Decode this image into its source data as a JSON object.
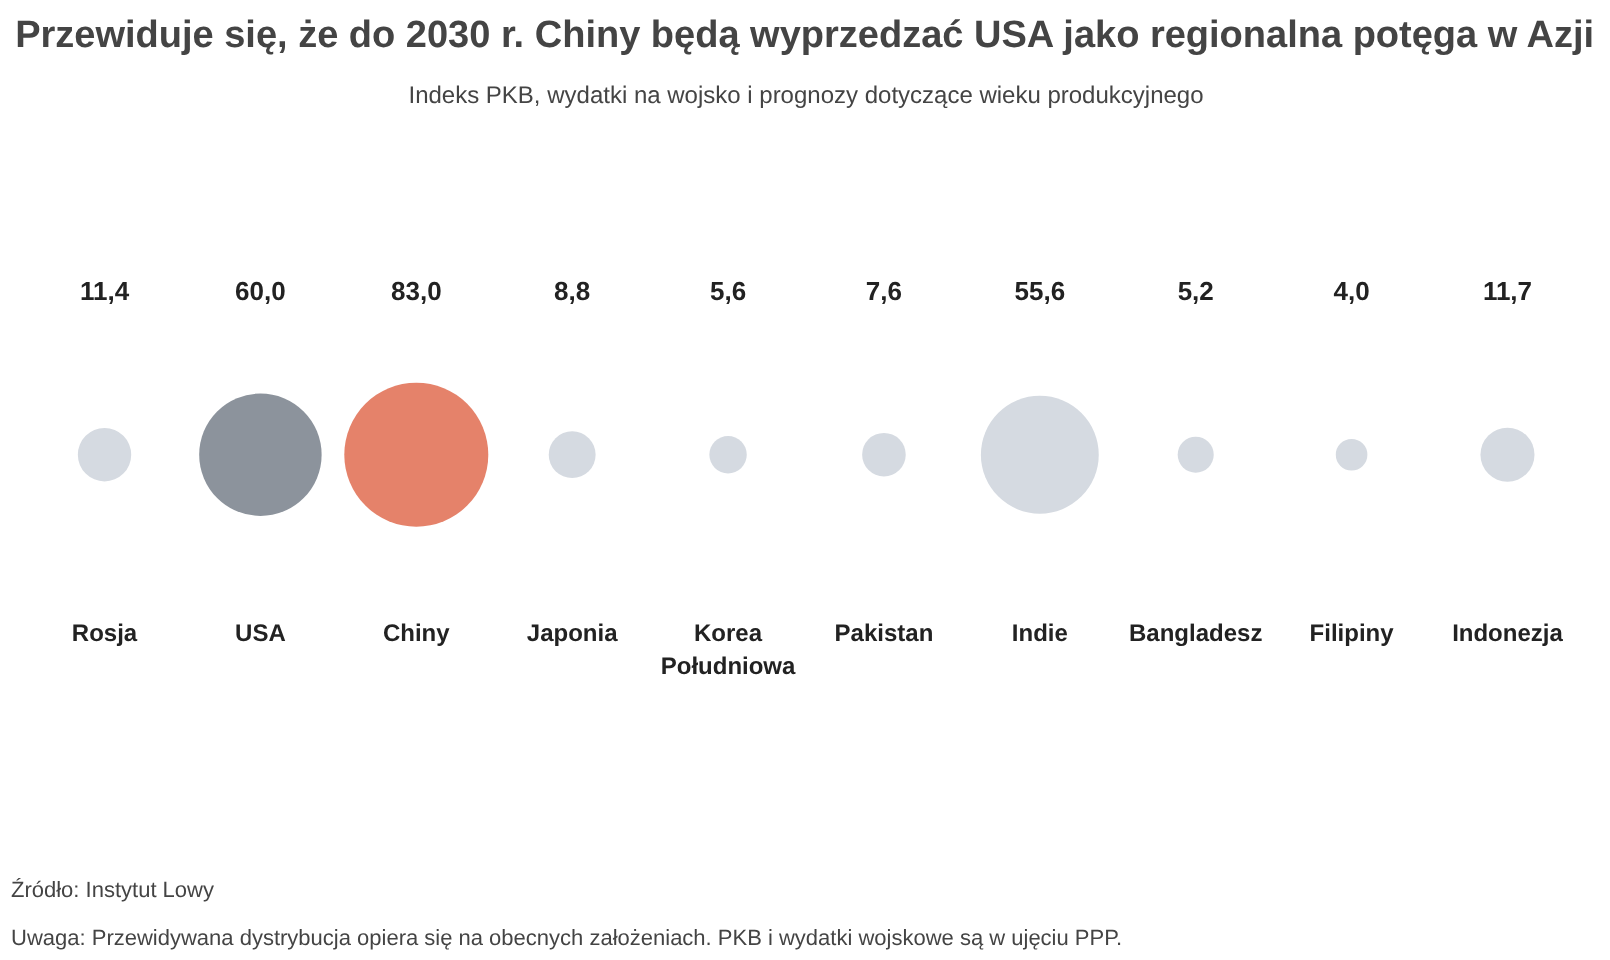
{
  "chart_data": {
    "type": "other",
    "title": "Przewiduje się, że do 2030 r. Chiny będą wyprzedzać USA jako regionalna potęga w Azji",
    "subtitle": "Indeks PKB, wydatki na wojsko i prognozy dotyczące wieku produkcyjnego",
    "categories": [
      "Rosja",
      "USA",
      "Chiny",
      "Japonia",
      "Korea Południowa",
      "Pakistan",
      "Indie",
      "Bangladesz",
      "Filipiny",
      "Indonezja"
    ],
    "values": [
      11.4,
      60.0,
      83.0,
      8.8,
      5.6,
      7.6,
      55.6,
      5.2,
      4.0,
      11.7
    ],
    "value_labels": [
      "11,4",
      "60,0",
      "83,0",
      "8,8",
      "5,6",
      "7,6",
      "55,6",
      "5,2",
      "4,0",
      "11,7"
    ],
    "colors": [
      "#d5dae1",
      "#8c939c",
      "#e5826a",
      "#d5dae1",
      "#d5dae1",
      "#d5dae1",
      "#d5dae1",
      "#d5dae1",
      "#d5dae1",
      "#d5dae1"
    ],
    "annotations": [
      "Uwaga: Przewidywana dystrybucja opiera się na obecnych założeniach. PKB i wydatki wojskowe są w ujęciu PPP.",
      "Źródło:  Instytut Lowy"
    ]
  }
}
